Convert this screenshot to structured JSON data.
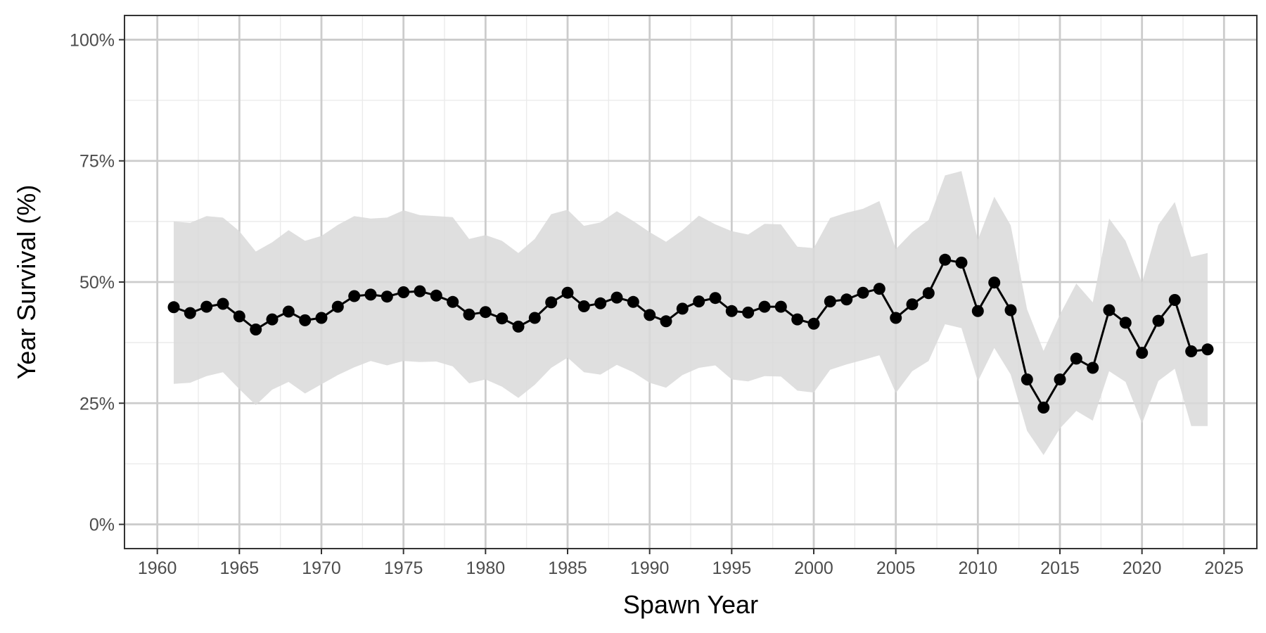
{
  "chart_data": {
    "type": "line",
    "title": "",
    "xlabel": "Spawn Year",
    "ylabel": "Year Survival (%)",
    "xlim": [
      1958,
      2027
    ],
    "ylim": [
      -5,
      105
    ],
    "x_ticks": [
      1960,
      1965,
      1970,
      1975,
      1980,
      1985,
      1990,
      1995,
      2000,
      2005,
      2010,
      2015,
      2020,
      2025
    ],
    "x_tick_labels": [
      "1960",
      "1965",
      "1970",
      "1975",
      "1980",
      "1985",
      "1990",
      "1995",
      "2000",
      "2005",
      "2010",
      "2015",
      "2020",
      "2025"
    ],
    "y_ticks": [
      0,
      25,
      50,
      75,
      100
    ],
    "y_tick_labels": [
      "0%",
      "25%",
      "50%",
      "75%",
      "100%"
    ],
    "grid": true,
    "legend": "none",
    "colors": {
      "line": "#000000",
      "ribbon": "#d9d9d9",
      "grid_major": "#cccccc",
      "grid_minor": "#ebebeb",
      "panel_border": "#333333"
    },
    "x": [
      1961,
      1962,
      1963,
      1964,
      1965,
      1966,
      1967,
      1968,
      1969,
      1970,
      1971,
      1972,
      1973,
      1974,
      1975,
      1976,
      1977,
      1978,
      1979,
      1980,
      1981,
      1982,
      1983,
      1984,
      1985,
      1986,
      1987,
      1988,
      1989,
      1990,
      1991,
      1992,
      1993,
      1994,
      1995,
      1996,
      1997,
      1998,
      1999,
      2000,
      2001,
      2002,
      2003,
      2004,
      2005,
      2006,
      2007,
      2008,
      2009,
      2010,
      2011,
      2012,
      2013,
      2014,
      2015,
      2016,
      2017,
      2018,
      2019,
      2020,
      2021,
      2022,
      2023,
      2024
    ],
    "series": [
      {
        "values": [
          44.8,
          43.6,
          44.9,
          45.5,
          42.9,
          40.2,
          42.3,
          43.9,
          42.1,
          42.6,
          44.9,
          47.1,
          47.4,
          47.0,
          47.9,
          48.1,
          47.2,
          45.9,
          43.3,
          43.8,
          42.5,
          40.8,
          42.6,
          45.8,
          47.8,
          45.0,
          45.6,
          46.8,
          45.9,
          43.2,
          41.9,
          44.5,
          46.0,
          46.7,
          44.0,
          43.7,
          44.9,
          44.9,
          42.3,
          41.4,
          46.0,
          46.4,
          47.8,
          48.6,
          42.6,
          45.4,
          47.7,
          54.6,
          54.0,
          44.0,
          49.9,
          44.2,
          29.9,
          24.1,
          29.9,
          34.2,
          32.3,
          44.2,
          41.6,
          35.4,
          42.0,
          46.3,
          35.7,
          36.1
        ],
        "lower": [
          29.0,
          29.2,
          30.6,
          31.4,
          27.9,
          24.6,
          27.8,
          29.4,
          27.0,
          28.9,
          30.8,
          32.4,
          33.7,
          32.8,
          33.7,
          33.5,
          33.6,
          32.6,
          29.1,
          29.9,
          28.4,
          26.1,
          28.8,
          32.3,
          34.4,
          31.4,
          30.9,
          32.9,
          31.4,
          29.2,
          28.2,
          30.8,
          32.3,
          32.8,
          29.9,
          29.5,
          30.6,
          30.5,
          27.6,
          27.2,
          31.9,
          33.0,
          33.9,
          34.9,
          27.1,
          31.6,
          33.7,
          41.3,
          40.5,
          29.5,
          36.4,
          30.9,
          19.3,
          14.3,
          19.8,
          23.4,
          21.4,
          31.6,
          29.4,
          20.8,
          29.6,
          32.1,
          20.3,
          20.3
        ],
        "upper": [
          62.5,
          62.2,
          63.6,
          63.3,
          60.5,
          56.3,
          58.2,
          60.7,
          58.5,
          59.5,
          61.8,
          63.6,
          63.1,
          63.3,
          64.8,
          63.8,
          63.6,
          63.4,
          58.9,
          59.7,
          58.5,
          56.0,
          58.9,
          64.0,
          64.9,
          61.6,
          62.3,
          64.6,
          62.6,
          60.3,
          58.3,
          60.7,
          63.7,
          61.9,
          60.5,
          59.8,
          62.0,
          61.9,
          57.3,
          57.0,
          63.2,
          64.3,
          65.1,
          66.7,
          56.8,
          60.3,
          62.8,
          72.0,
          72.9,
          58.7,
          67.6,
          61.7,
          44.4,
          35.8,
          43.3,
          49.7,
          45.8,
          63.1,
          58.5,
          49.8,
          61.8,
          66.5,
          55.2,
          56.0
        ]
      }
    ]
  }
}
